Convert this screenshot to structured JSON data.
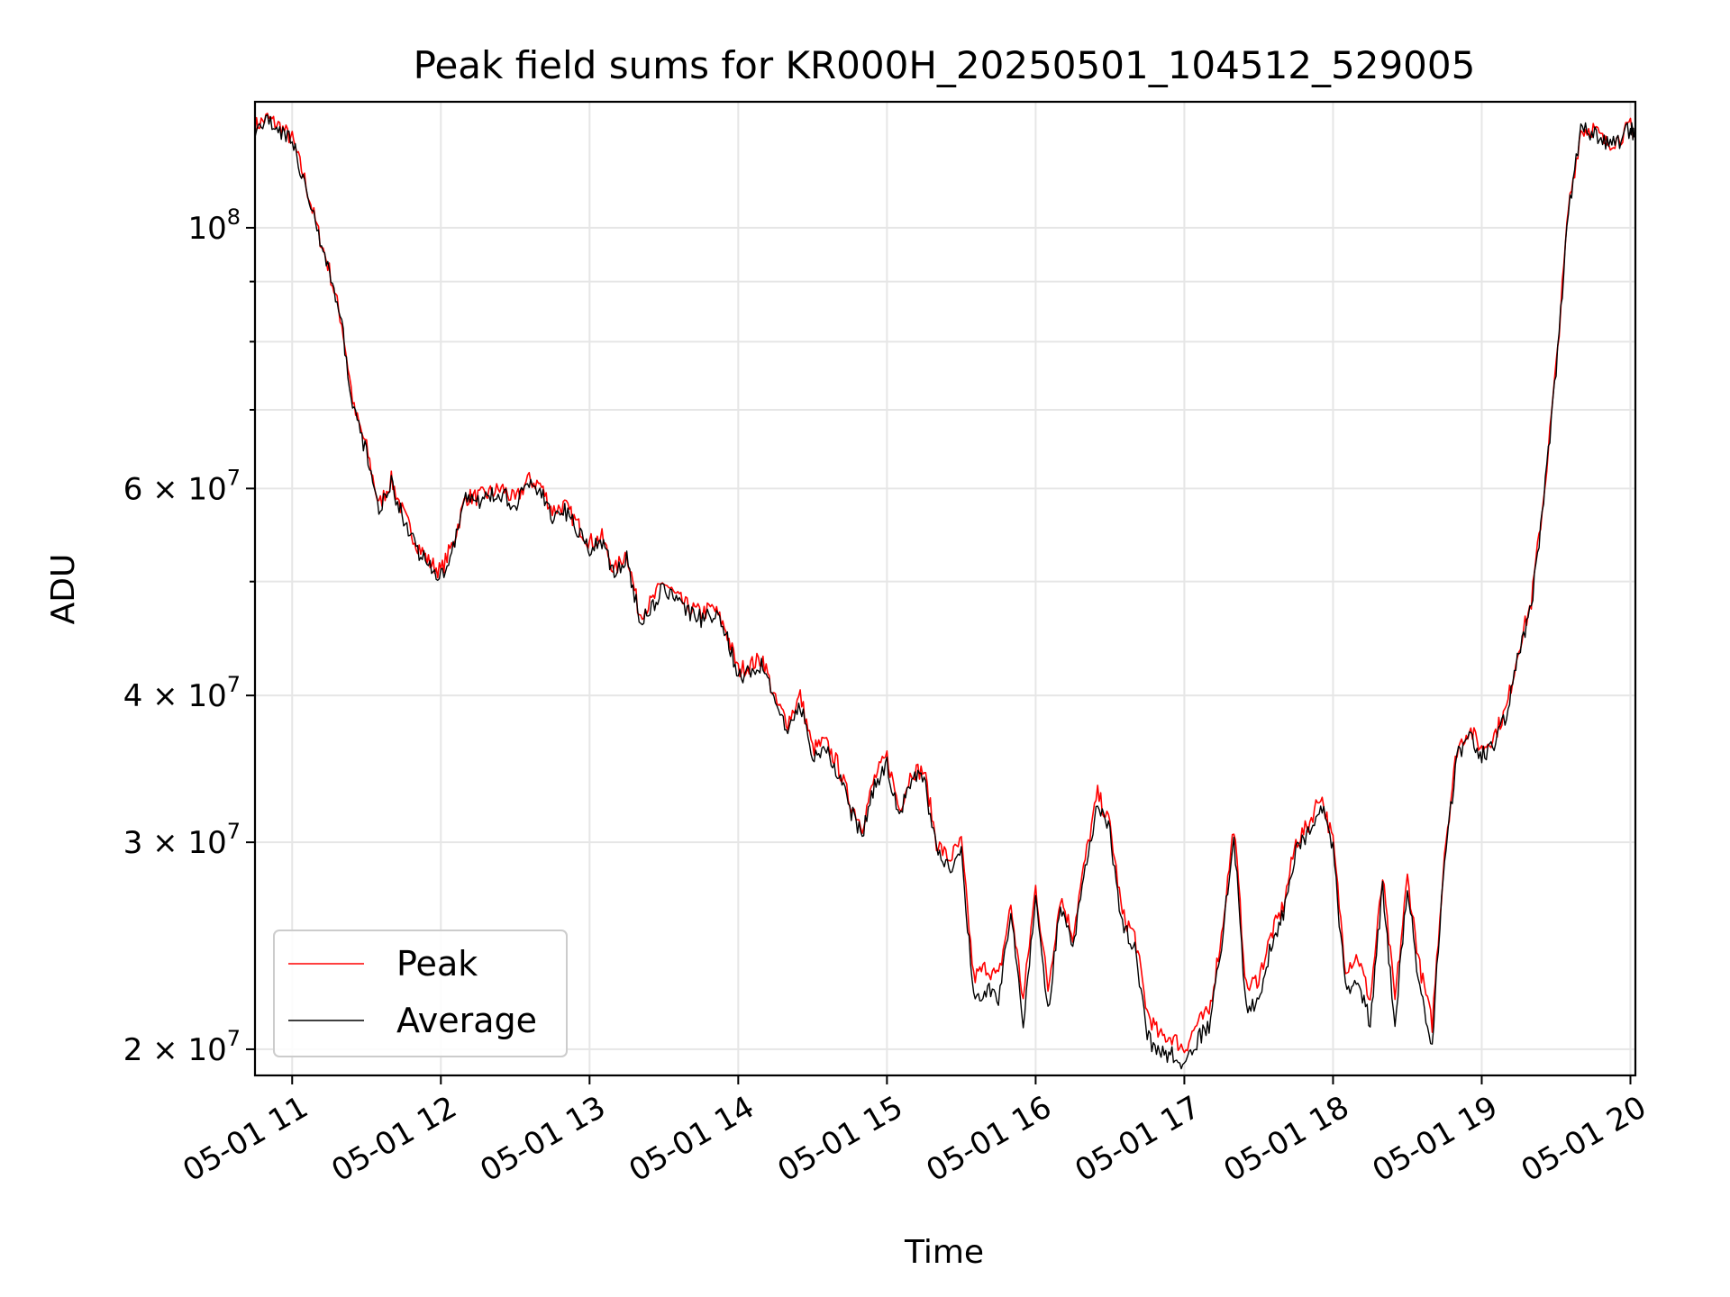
{
  "chart_data": {
    "type": "line",
    "title": "Peak field sums for KR000H_20250501_104512_529005",
    "xlabel": "Time",
    "ylabel": "ADU",
    "yscale": "log",
    "xlim": [
      "05-01 10:45",
      "05-01 20:02"
    ],
    "ylim": [
      19000000,
      128000000
    ],
    "grid": true,
    "legend_location": "lower-left",
    "x_ticks": [
      "05-01 11",
      "05-01 12",
      "05-01 13",
      "05-01 14",
      "05-01 15",
      "05-01 16",
      "05-01 17",
      "05-01 18",
      "05-01 19",
      "05-01 20"
    ],
    "y_ticks": [
      {
        "value": 100000000,
        "base": "10",
        "exp": "8",
        "mant": ""
      },
      {
        "value": 60000000,
        "base": "10",
        "exp": "7",
        "mant": "6"
      },
      {
        "value": 40000000,
        "base": "10",
        "exp": "7",
        "mant": "4"
      },
      {
        "value": 30000000,
        "base": "10",
        "exp": "7",
        "mant": "3"
      },
      {
        "value": 20000000,
        "base": "10",
        "exp": "7",
        "mant": "2"
      }
    ],
    "y_minor_grid": [
      90000000,
      80000000,
      70000000,
      50000000
    ],
    "x": [
      "10:45",
      "10:50",
      "10:55",
      "11:00",
      "11:05",
      "11:10",
      "11:15",
      "11:20",
      "11:25",
      "11:30",
      "11:35",
      "11:40",
      "11:45",
      "11:50",
      "11:55",
      "12:00",
      "12:05",
      "12:10",
      "12:15",
      "12:20",
      "12:25",
      "12:30",
      "12:35",
      "12:40",
      "12:45",
      "12:50",
      "12:55",
      "13:00",
      "13:05",
      "13:10",
      "13:15",
      "13:20",
      "13:25",
      "13:30",
      "13:35",
      "13:40",
      "13:45",
      "13:50",
      "13:55",
      "14:00",
      "14:05",
      "14:10",
      "14:15",
      "14:20",
      "14:25",
      "14:30",
      "14:35",
      "14:40",
      "14:45",
      "14:50",
      "14:55",
      "15:00",
      "15:05",
      "15:10",
      "15:15",
      "15:20",
      "15:25",
      "15:30",
      "15:35",
      "15:40",
      "15:45",
      "15:50",
      "15:55",
      "16:00",
      "16:05",
      "16:10",
      "16:15",
      "16:20",
      "16:25",
      "16:30",
      "16:35",
      "16:40",
      "16:45",
      "16:50",
      "16:55",
      "17:00",
      "17:05",
      "17:10",
      "17:15",
      "17:20",
      "17:25",
      "17:30",
      "17:35",
      "17:40",
      "17:45",
      "17:50",
      "17:55",
      "18:00",
      "18:05",
      "18:10",
      "18:15",
      "18:20",
      "18:25",
      "18:30",
      "18:35",
      "18:40",
      "18:45",
      "18:50",
      "18:55",
      "19:00",
      "19:05",
      "19:10",
      "19:15",
      "19:20",
      "19:25",
      "19:30",
      "19:35",
      "19:40",
      "19:45",
      "19:50",
      "19:55",
      "20:00",
      "20:02"
    ],
    "series": [
      {
        "name": "Peak",
        "color": "#ff0000",
        "values": [
          122000000,
          124000000,
          122000000,
          119000000,
          110000000,
          100000000,
          92000000,
          83000000,
          70000000,
          65000000,
          58000000,
          61000000,
          57000000,
          54000000,
          52000000,
          51000000,
          54000000,
          59000000,
          59000000,
          59500000,
          60000000,
          58500000,
          61000000,
          60500000,
          57500000,
          58000000,
          56000000,
          54000000,
          54500000,
          51000000,
          53000000,
          47000000,
          48000000,
          50000000,
          48500000,
          47500000,
          47000000,
          47500000,
          45500000,
          42000000,
          42500000,
          43000000,
          39500000,
          38000000,
          40000000,
          36000000,
          36500000,
          35000000,
          32500000,
          31000000,
          34000000,
          35500000,
          32000000,
          34500000,
          34500000,
          30000000,
          29000000,
          30000000,
          23000000,
          23500000,
          23000000,
          26500000,
          22000000,
          27500000,
          22500000,
          27000000,
          25000000,
          29000000,
          33000000,
          31000000,
          26000000,
          25000000,
          21500000,
          20500000,
          20500000,
          20000000,
          21000000,
          21500000,
          25000000,
          31000000,
          22500000,
          23000000,
          25000000,
          26500000,
          30000000,
          31000000,
          33000000,
          30000000,
          23500000,
          24000000,
          22000000,
          28000000,
          22000000,
          28000000,
          23500000,
          21000000,
          29500000,
          36000000,
          37500000,
          36000000,
          37000000,
          39000000,
          44000000,
          48000000,
          59000000,
          76000000,
          104000000,
          121000000,
          121500000,
          118000000,
          119000000,
          122000000,
          120000000
        ]
      },
      {
        "name": "Average",
        "color": "#000000",
        "values": [
          121500000,
          123500000,
          121000000,
          118500000,
          109500000,
          99500000,
          91500000,
          82500000,
          69500000,
          64500000,
          57500000,
          60500000,
          56500000,
          53500000,
          51500000,
          50500000,
          53500000,
          58500000,
          58500000,
          59000000,
          59500000,
          58000000,
          60500000,
          60000000,
          57000000,
          57500000,
          55500000,
          53500000,
          54000000,
          50500000,
          52500000,
          46500000,
          47500000,
          49500000,
          48000000,
          47000000,
          46500000,
          47000000,
          45000000,
          41500000,
          42000000,
          42500000,
          39000000,
          37500000,
          39500000,
          35500000,
          36000000,
          34500000,
          32000000,
          30500000,
          33500000,
          35000000,
          31500000,
          34000000,
          34000000,
          29500000,
          28500000,
          29500000,
          22000000,
          22500000,
          22000000,
          26000000,
          21000000,
          27000000,
          21500000,
          26500000,
          24500000,
          28500000,
          32500000,
          30500000,
          25500000,
          24500000,
          20500000,
          19800000,
          19800000,
          19500000,
          20300000,
          21000000,
          24500000,
          30500000,
          21500000,
          22000000,
          24500000,
          26000000,
          29500000,
          30500000,
          32500000,
          29500000,
          22500000,
          23000000,
          21000000,
          27500000,
          21000000,
          27500000,
          22500000,
          20300000,
          29000000,
          35500000,
          37000000,
          35500000,
          36500000,
          38500000,
          43500000,
          47500000,
          58500000,
          75500000,
          103500000,
          120500000,
          121000000,
          117500000,
          118500000,
          121500000,
          119500000
        ]
      }
    ]
  }
}
